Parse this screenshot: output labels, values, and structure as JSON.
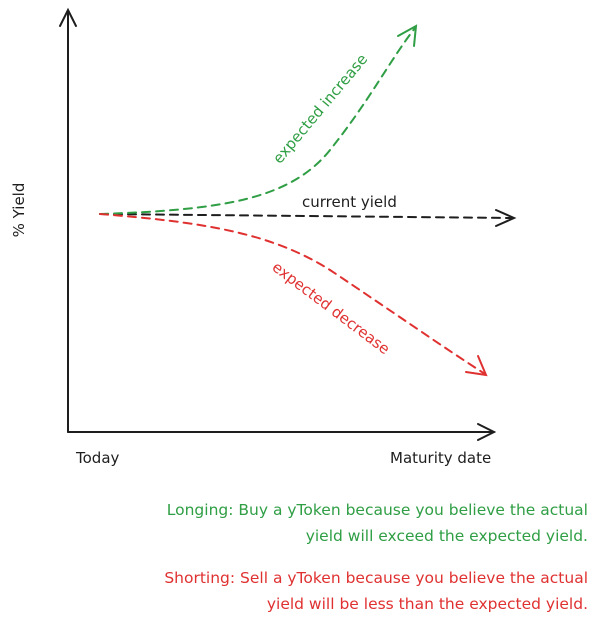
{
  "axes": {
    "y_label": "% Yield",
    "x_start": "Today",
    "x_end": "Maturity date"
  },
  "curves": {
    "increase": "expected increase",
    "current": "current yield",
    "decrease": "expected decrease"
  },
  "notes": {
    "longing": [
      "Longing: Buy a yToken because you believe the actual",
      "yield will exceed the expected yield."
    ],
    "shorting": [
      "Shorting: Sell a yToken because you believe the actual",
      "yield will be less than the expected yield."
    ]
  }
}
